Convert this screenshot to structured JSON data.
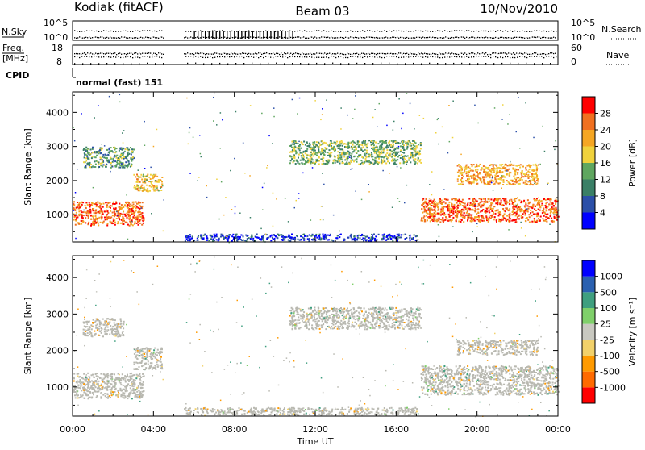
{
  "header": {
    "station": "Kodiak (fitACF)",
    "beam": "Beam 03",
    "date": "10/Nov/2010"
  },
  "strip_labels": {
    "nsky": "N.Sky",
    "nsearch": "N.Search",
    "freq_line1": "Freq.",
    "freq_line2": "[MHz]",
    "nave": "Nave",
    "cpid": "CPID",
    "mode": "normal (fast) 151",
    "nsky_ticks": [
      "10^5",
      "10^0"
    ],
    "nsearch_ticks": [
      "10^5",
      "10^0"
    ],
    "freq_ticks": [
      "18",
      "8"
    ],
    "nave_ticks": [
      "60",
      "0"
    ]
  },
  "colors": {
    "power_scale": [
      "#0000ff",
      "#2b4fa8",
      "#3a7f66",
      "#5fa65f",
      "#f0d23c",
      "#f5a623",
      "#f07020",
      "#ff0000"
    ],
    "velocity_scale": [
      "#ff0000",
      "#ff6a00",
      "#ff9a00",
      "#f2d16a",
      "#c8c8c0",
      "#7fcf6a",
      "#3f9f7f",
      "#2a60b0",
      "#0000ff"
    ],
    "ground_scatter": "#b8b8b0"
  },
  "chart_data": [
    {
      "type": "heatmap",
      "name": "power",
      "xlabel": "",
      "ylabel": "Slant Range [km]",
      "x_ticks": [
        "00:00",
        "04:00",
        "08:00",
        "12:00",
        "16:00",
        "20:00",
        "00:00"
      ],
      "y_ticks": [
        1000,
        2000,
        3000,
        4000
      ],
      "xlim": [
        0,
        24
      ],
      "ylim": [
        200,
        4600
      ],
      "colorbar_label": "Power [dB]",
      "colorbar_ticks": [
        4,
        8,
        12,
        16,
        20,
        24,
        28
      ],
      "data_gaps_hours": [
        [
          4.5,
          5.5
        ]
      ],
      "regions": [
        {
          "t0": 0.0,
          "t1": 3.5,
          "r0": 700,
          "r1": 1400,
          "power": 28
        },
        {
          "t0": 3.0,
          "t1": 4.4,
          "r0": 1700,
          "r1": 2200,
          "power": 22
        },
        {
          "t0": 0.5,
          "t1": 3.0,
          "r0": 2400,
          "r1": 3000,
          "power": 14
        },
        {
          "t0": 10.7,
          "t1": 17.2,
          "r0": 2500,
          "r1": 3200,
          "power": 16
        },
        {
          "t0": 17.2,
          "t1": 24.0,
          "r0": 800,
          "r1": 1500,
          "power": 28
        },
        {
          "t0": 19.0,
          "t1": 23.0,
          "r0": 1900,
          "r1": 2500,
          "power": 24
        },
        {
          "t0": 5.5,
          "t1": 17.0,
          "r0": 250,
          "r1": 450,
          "power": 6
        }
      ]
    },
    {
      "type": "heatmap",
      "name": "velocity",
      "xlabel": "Time UT",
      "ylabel": "Slant Range [km]",
      "x_ticks": [
        "00:00",
        "04:00",
        "08:00",
        "12:00",
        "16:00",
        "20:00",
        "00:00"
      ],
      "y_ticks": [
        1000,
        2000,
        3000,
        4000
      ],
      "xlim": [
        0,
        24
      ],
      "ylim": [
        200,
        4600
      ],
      "colorbar_label": "Velocity [m s⁻¹]",
      "colorbar_ticks": [
        "1000",
        "500",
        "100",
        "25",
        "-25",
        "-100",
        "-500",
        "-1000"
      ],
      "data_gaps_hours": [
        [
          4.5,
          5.5
        ]
      ],
      "regions": [
        {
          "t0": 0.0,
          "t1": 3.5,
          "r0": 700,
          "r1": 1400,
          "velocity": 0
        },
        {
          "t0": 3.0,
          "t1": 4.4,
          "r0": 1500,
          "r1": 2100,
          "velocity": 0
        },
        {
          "t0": 0.5,
          "t1": 2.5,
          "r0": 2400,
          "r1": 2900,
          "velocity": -200
        },
        {
          "t0": 10.7,
          "t1": 17.2,
          "r0": 2600,
          "r1": 3200,
          "velocity": 0
        },
        {
          "t0": 17.2,
          "t1": 24.0,
          "r0": 800,
          "r1": 1600,
          "velocity": 0
        },
        {
          "t0": 19.0,
          "t1": 23.0,
          "r0": 1900,
          "r1": 2300,
          "velocity": -150
        },
        {
          "t0": 5.5,
          "t1": 17.0,
          "r0": 250,
          "r1": 450,
          "velocity": -50
        }
      ]
    }
  ]
}
